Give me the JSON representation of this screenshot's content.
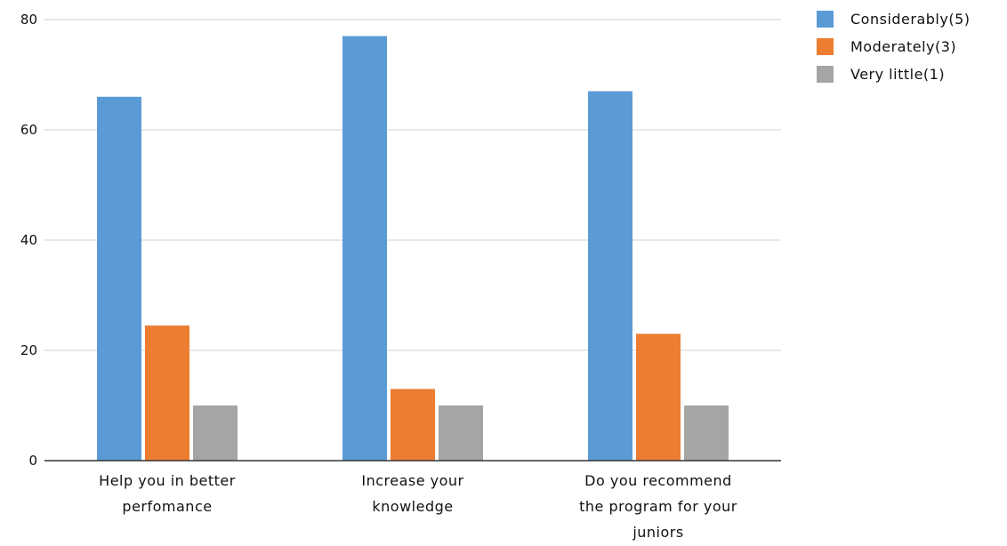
{
  "chart_data": {
    "type": "bar",
    "categories": [
      [
        "Help you in better",
        "perfomance"
      ],
      [
        "Increase your",
        "knowledge"
      ],
      [
        "Do you recommend",
        "the program for your",
        "juniors"
      ]
    ],
    "series": [
      {
        "name": "Considerably(5)",
        "color": "#5b9bd5",
        "values": [
          66,
          77,
          67
        ]
      },
      {
        "name": "Moderately(3)",
        "color": "#ed7d31",
        "values": [
          24.5,
          13,
          23
        ]
      },
      {
        "name": "Very little(1)",
        "color": "#a5a5a5",
        "values": [
          10,
          10,
          10
        ]
      }
    ],
    "yticks": [
      "0",
      "20",
      "40",
      "60",
      "80"
    ],
    "ylim": [
      0,
      80
    ],
    "grid": true,
    "legend_position": "top-right",
    "title": "",
    "xlabel": "",
    "ylabel": ""
  }
}
